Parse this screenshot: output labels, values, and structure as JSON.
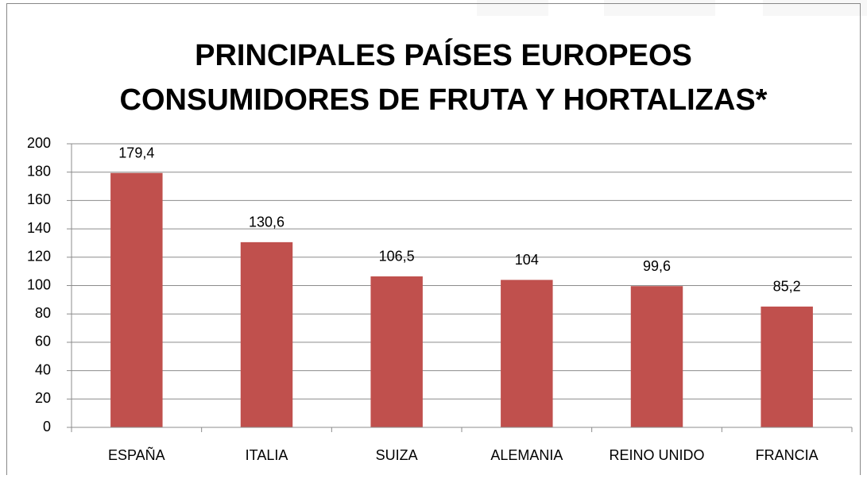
{
  "chart_data": {
    "type": "bar",
    "title": [
      "PRINCIPALES PAÍSES EUROPEOS",
      "CONSUMIDORES DE FRUTA Y HORTALIZAS*"
    ],
    "categories": [
      "ESPAÑA",
      "ITALIA",
      "SUIZA",
      "ALEMANIA",
      "REINO UNIDO",
      "FRANCIA"
    ],
    "values": [
      179.4,
      130.6,
      106.5,
      104,
      99.6,
      85.2
    ],
    "value_labels": [
      "179,4",
      "130,6",
      "106,5",
      "104",
      "99,6",
      "85,2"
    ],
    "color": "#c0504d",
    "ylim": [
      0,
      200
    ],
    "yticks": [
      0,
      20,
      40,
      60,
      80,
      100,
      120,
      140,
      160,
      180,
      200
    ],
    "grid": true
  }
}
